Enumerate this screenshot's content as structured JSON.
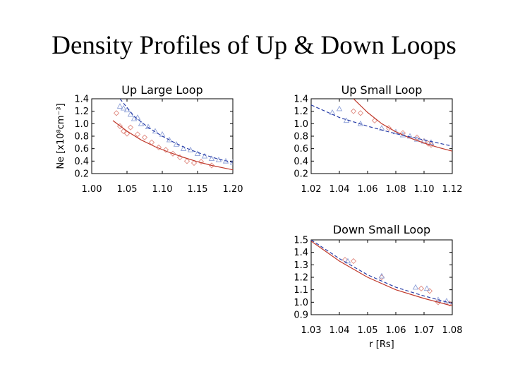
{
  "slide": {
    "title": "Density Profiles of Up & Down Loops"
  },
  "colors": {
    "fit_red": "#c0392b",
    "fit_blue": "#2a3fa8",
    "obs_red": "#e08a80",
    "obs_blue": "#8ea0d8",
    "axes": "#000000"
  },
  "chart_data": [
    {
      "id": "up-large",
      "type": "scatter",
      "title": "Up Large Loop",
      "xlabel": "",
      "ylabel": "Ne [x10⁸cm⁻³]",
      "xlim": [
        1.0,
        1.2
      ],
      "ylim": [
        0.2,
        1.4
      ],
      "xticks": [
        "1.00",
        "1.05",
        "1.10",
        "1.15",
        "1.20"
      ],
      "yticks": [
        "0.2",
        "0.4",
        "0.6",
        "0.8",
        "1.0",
        "1.2",
        "1.4"
      ],
      "xtick_values": [
        1.0,
        1.05,
        1.1,
        1.15,
        1.2
      ],
      "ytick_values": [
        0.2,
        0.4,
        0.6,
        0.8,
        1.0,
        1.2,
        1.4
      ],
      "series": [
        {
          "name": "observed-red",
          "marker": "diamond",
          "color": "#e08a80",
          "x": [
            1.035,
            1.04,
            1.045,
            1.05,
            1.055,
            1.065,
            1.075,
            1.085,
            1.095,
            1.105,
            1.115,
            1.125,
            1.135,
            1.145,
            1.155,
            1.17
          ],
          "y": [
            1.17,
            0.96,
            0.88,
            0.84,
            0.94,
            0.83,
            0.78,
            0.7,
            0.62,
            0.58,
            0.52,
            0.46,
            0.4,
            0.37,
            0.39,
            0.33
          ]
        },
        {
          "name": "observed-blue",
          "marker": "triangle",
          "color": "#8ea0d8",
          "x": [
            1.04,
            1.045,
            1.05,
            1.055,
            1.06,
            1.065,
            1.07,
            1.08,
            1.09,
            1.1,
            1.11,
            1.12,
            1.13,
            1.14,
            1.15,
            1.16,
            1.17,
            1.18,
            1.19,
            1.2
          ],
          "y": [
            1.28,
            1.25,
            1.22,
            1.15,
            1.08,
            1.1,
            1.0,
            0.95,
            0.88,
            0.83,
            0.74,
            0.67,
            0.6,
            0.58,
            0.52,
            0.48,
            0.44,
            0.42,
            0.4,
            0.38
          ]
        },
        {
          "name": "fit-red",
          "style": "solid",
          "color": "#c0392b",
          "x": [
            1.03,
            1.05,
            1.07,
            1.09,
            1.11,
            1.13,
            1.15,
            1.17,
            1.2
          ],
          "y": [
            1.05,
            0.88,
            0.74,
            0.63,
            0.54,
            0.46,
            0.39,
            0.33,
            0.26
          ]
        },
        {
          "name": "fit-blue",
          "style": "dashed",
          "color": "#2a3fa8",
          "x": [
            1.04,
            1.06,
            1.08,
            1.1,
            1.12,
            1.14,
            1.16,
            1.18,
            1.2
          ],
          "y": [
            1.4,
            1.12,
            0.94,
            0.8,
            0.68,
            0.58,
            0.5,
            0.43,
            0.38
          ]
        }
      ]
    },
    {
      "id": "up-small",
      "type": "scatter",
      "title": "Up Small Loop",
      "xlabel": "",
      "ylabel": "",
      "xlim": [
        1.02,
        1.12
      ],
      "ylim": [
        0.2,
        1.4
      ],
      "xticks": [
        "1.02",
        "1.04",
        "1.06",
        "1.08",
        "1.10",
        "1.12"
      ],
      "yticks": [
        "0.2",
        "0.4",
        "0.6",
        "0.8",
        "1.0",
        "1.2",
        "1.4"
      ],
      "xtick_values": [
        1.02,
        1.04,
        1.06,
        1.08,
        1.1,
        1.12
      ],
      "ytick_values": [
        0.2,
        0.4,
        0.6,
        0.8,
        1.0,
        1.2,
        1.4
      ],
      "series": [
        {
          "name": "observed-red",
          "marker": "diamond",
          "color": "#e08a80",
          "x": [
            1.05,
            1.055,
            1.065,
            1.075,
            1.085,
            1.095,
            1.1,
            1.103,
            1.105
          ],
          "y": [
            1.2,
            1.17,
            1.05,
            0.93,
            0.85,
            0.78,
            0.72,
            0.68,
            0.66
          ]
        },
        {
          "name": "observed-blue",
          "marker": "triangle",
          "color": "#8ea0d8",
          "x": [
            1.035,
            1.04,
            1.045,
            1.055,
            1.07,
            1.08,
            1.085,
            1.09,
            1.095,
            1.1,
            1.105
          ],
          "y": [
            1.18,
            1.24,
            1.05,
            1.0,
            0.93,
            0.87,
            0.82,
            0.8,
            0.75,
            0.72,
            0.7
          ]
        },
        {
          "name": "fit-red",
          "style": "solid",
          "color": "#c0392b",
          "x": [
            1.05,
            1.06,
            1.07,
            1.08,
            1.09,
            1.1,
            1.11,
            1.12
          ],
          "y": [
            1.4,
            1.18,
            1.0,
            0.87,
            0.77,
            0.69,
            0.62,
            0.56
          ]
        },
        {
          "name": "fit-blue",
          "style": "dashed",
          "color": "#2a3fa8",
          "x": [
            1.02,
            1.04,
            1.06,
            1.08,
            1.1,
            1.12
          ],
          "y": [
            1.3,
            1.1,
            0.96,
            0.84,
            0.74,
            0.64
          ]
        }
      ]
    },
    {
      "id": "down-small",
      "type": "scatter",
      "title": "Down Small Loop",
      "xlabel": "r [Rs]",
      "ylabel": "",
      "xlim": [
        1.03,
        1.08
      ],
      "ylim": [
        0.9,
        1.5
      ],
      "xticks": [
        "1.03",
        "1.04",
        "1.05",
        "1.06",
        "1.07",
        "1.08"
      ],
      "yticks": [
        "0.9",
        "1.0",
        "1.1",
        "1.2",
        "1.3",
        "1.4",
        "1.5"
      ],
      "xtick_values": [
        1.03,
        1.04,
        1.05,
        1.06,
        1.07,
        1.08
      ],
      "ytick_values": [
        0.9,
        1.0,
        1.1,
        1.2,
        1.3,
        1.4,
        1.5
      ],
      "series": [
        {
          "name": "observed-red",
          "marker": "diamond",
          "color": "#e08a80",
          "x": [
            1.042,
            1.045,
            1.055,
            1.069,
            1.072,
            1.075,
            1.079
          ],
          "y": [
            1.34,
            1.33,
            1.2,
            1.11,
            1.09,
            1.0,
            0.99
          ]
        },
        {
          "name": "observed-blue",
          "marker": "triangle",
          "color": "#8ea0d8",
          "x": [
            1.043,
            1.055,
            1.067,
            1.071,
            1.075,
            1.078
          ],
          "y": [
            1.33,
            1.21,
            1.12,
            1.11,
            1.02,
            1.01
          ]
        },
        {
          "name": "fit-red",
          "style": "solid",
          "color": "#c0392b",
          "x": [
            1.03,
            1.04,
            1.05,
            1.06,
            1.07,
            1.08
          ],
          "y": [
            1.49,
            1.33,
            1.2,
            1.1,
            1.03,
            0.97
          ]
        },
        {
          "name": "fit-blue",
          "style": "dashed",
          "color": "#2a3fa8",
          "x": [
            1.03,
            1.04,
            1.05,
            1.06,
            1.07,
            1.08
          ],
          "y": [
            1.5,
            1.35,
            1.22,
            1.12,
            1.05,
            0.99
          ]
        }
      ]
    }
  ]
}
